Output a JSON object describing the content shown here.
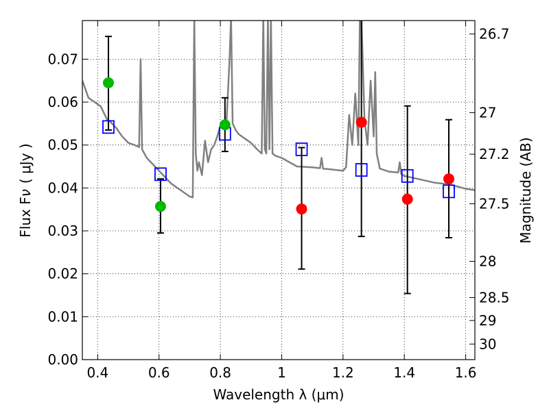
{
  "chart_data": {
    "type": "scatter",
    "xlabel": "Wavelength  λ (μm)",
    "ylabel": "Flux  F",
    "ylabel_sub": "ν",
    "ylabel_unit": "( μJy )",
    "y2label": "Magnitude (AB)",
    "xlim": [
      0.35,
      1.63
    ],
    "ylim": [
      0.0,
      0.079
    ],
    "grid": true,
    "x_ticks": [
      0.4,
      0.6,
      0.8,
      1.0,
      1.2,
      1.4,
      1.6
    ],
    "x_tick_labels": [
      "0.4",
      "0.6",
      "0.8",
      "1",
      "1.2",
      "1.4",
      "1.6"
    ],
    "y_ticks": [
      0.0,
      0.01,
      0.02,
      0.03,
      0.04,
      0.05,
      0.06,
      0.07
    ],
    "y_tick_labels": [
      "0.00",
      "0.01",
      "0.02",
      "0.03",
      "0.04",
      "0.05",
      "0.06",
      "0.07"
    ],
    "mag_ticks": [
      26.7,
      27.0,
      27.2,
      27.5,
      28.0,
      28.5,
      29.0,
      30.0
    ],
    "mag_tick_labels": [
      "26.7",
      "27",
      "27.2",
      "27.5",
      "28",
      "28.5",
      "29",
      "30"
    ],
    "colors": {
      "spectrum": "#808080",
      "model": "#0000ff",
      "green": "#00bb00",
      "red": "#ff0000",
      "errorbar": "#000000"
    },
    "series": [
      {
        "marker": "model-square",
        "x": [
          0.435,
          0.605,
          0.815,
          1.065,
          1.26,
          1.41,
          1.545
        ],
        "y": [
          0.0542,
          0.0432,
          0.0526,
          0.049,
          0.0442,
          0.0428,
          0.0392
        ]
      },
      {
        "marker": "green-circle",
        "x": [
          0.435,
          0.605,
          0.815
        ],
        "y": [
          0.0645,
          0.0357,
          0.0547
        ],
        "yerr_low": [
          0.0535,
          0.0295,
          0.0485
        ],
        "yerr_high": [
          0.0753,
          0.0421,
          0.061
        ]
      },
      {
        "marker": "red-circle",
        "x": [
          1.065,
          1.26,
          1.41,
          1.545
        ],
        "y": [
          0.0351,
          0.0553,
          0.0374,
          0.0421
        ],
        "yerr_low": [
          0.0211,
          0.0287,
          0.0154,
          0.0284
        ],
        "yerr_high": [
          0.0494,
          0.082,
          0.0591,
          0.0559
        ]
      },
      {
        "marker": "spectrum-line",
        "x": [
          0.35,
          0.37,
          0.39,
          0.41,
          0.43,
          0.44,
          0.46,
          0.48,
          0.5,
          0.52,
          0.535,
          0.54,
          0.545,
          0.56,
          0.58,
          0.6,
          0.62,
          0.64,
          0.66,
          0.68,
          0.7,
          0.71,
          0.715,
          0.72,
          0.725,
          0.73,
          0.74,
          0.75,
          0.76,
          0.77,
          0.78,
          0.79,
          0.8,
          0.82,
          0.83,
          0.835,
          0.84,
          0.85,
          0.86,
          0.88,
          0.9,
          0.92,
          0.935,
          0.94,
          0.945,
          0.95,
          0.955,
          0.96,
          0.965,
          0.97,
          0.98,
          1.0,
          1.05,
          1.1,
          1.125,
          1.13,
          1.135,
          1.15,
          1.2,
          1.21,
          1.22,
          1.23,
          1.24,
          1.25,
          1.255,
          1.26,
          1.27,
          1.28,
          1.29,
          1.3,
          1.305,
          1.31,
          1.32,
          1.35,
          1.38,
          1.385,
          1.39,
          1.4,
          1.45,
          1.5,
          1.55,
          1.6,
          1.63
        ],
        "y": [
          0.065,
          0.061,
          0.06,
          0.059,
          0.056,
          0.0555,
          0.054,
          0.052,
          0.0505,
          0.05,
          0.0495,
          0.07,
          0.049,
          0.047,
          0.0455,
          0.044,
          0.0425,
          0.041,
          0.04,
          0.039,
          0.038,
          0.0378,
          0.08,
          0.048,
          0.044,
          0.046,
          0.043,
          0.051,
          0.046,
          0.049,
          0.05,
          0.052,
          0.0545,
          0.055,
          0.07,
          0.08,
          0.055,
          0.0535,
          0.0525,
          0.0515,
          0.0505,
          0.049,
          0.048,
          0.08,
          0.049,
          0.048,
          0.08,
          0.049,
          0.08,
          0.048,
          0.0475,
          0.047,
          0.045,
          0.0448,
          0.0446,
          0.047,
          0.0445,
          0.0444,
          0.044,
          0.0448,
          0.057,
          0.05,
          0.062,
          0.05,
          0.08,
          0.08,
          0.056,
          0.05,
          0.065,
          0.052,
          0.067,
          0.048,
          0.0445,
          0.0438,
          0.0436,
          0.046,
          0.0432,
          0.0428,
          0.042,
          0.0412,
          0.0408,
          0.0398,
          0.0395
        ]
      }
    ]
  }
}
